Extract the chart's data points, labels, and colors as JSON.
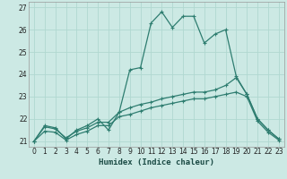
{
  "xlabel": "Humidex (Indice chaleur)",
  "xlim": [
    -0.5,
    23.5
  ],
  "ylim": [
    20.75,
    27.25
  ],
  "xticks": [
    0,
    1,
    2,
    3,
    4,
    5,
    6,
    7,
    8,
    9,
    10,
    11,
    12,
    13,
    14,
    15,
    16,
    17,
    18,
    19,
    20,
    21,
    22,
    23
  ],
  "yticks": [
    21,
    22,
    23,
    24,
    25,
    26,
    27
  ],
  "bg_color": "#cce9e4",
  "grid_color": "#b0d8d0",
  "line_color": "#2e7d70",
  "line1_x": [
    0,
    1,
    2,
    3,
    4,
    5,
    6,
    7,
    8,
    9,
    10,
    11,
    12,
    13,
    14,
    15,
    16,
    17,
    18,
    19,
    20,
    21,
    22,
    23
  ],
  "line1_y": [
    21.0,
    21.7,
    21.6,
    21.1,
    21.5,
    21.7,
    22.0,
    21.5,
    22.3,
    24.2,
    24.3,
    26.3,
    26.8,
    26.1,
    26.6,
    26.6,
    25.4,
    25.8,
    26.0,
    23.9,
    23.1,
    22.0,
    21.5,
    21.1
  ],
  "line2_x": [
    0,
    1,
    2,
    3,
    4,
    5,
    6,
    7,
    8,
    9,
    10,
    11,
    12,
    13,
    14,
    15,
    16,
    17,
    18,
    19,
    20,
    21,
    22,
    23
  ],
  "line2_y": [
    21.0,
    21.65,
    21.55,
    21.15,
    21.45,
    21.6,
    21.85,
    21.85,
    22.3,
    22.5,
    22.65,
    22.75,
    22.9,
    23.0,
    23.1,
    23.2,
    23.2,
    23.3,
    23.5,
    23.85,
    23.1,
    22.0,
    21.5,
    21.1
  ],
  "line3_x": [
    0,
    1,
    2,
    3,
    4,
    5,
    6,
    7,
    8,
    9,
    10,
    11,
    12,
    13,
    14,
    15,
    16,
    17,
    18,
    19,
    20,
    21,
    22,
    23
  ],
  "line3_y": [
    21.0,
    21.45,
    21.4,
    21.05,
    21.3,
    21.45,
    21.7,
    21.7,
    22.1,
    22.2,
    22.35,
    22.5,
    22.6,
    22.7,
    22.8,
    22.9,
    22.9,
    23.0,
    23.1,
    23.2,
    23.0,
    21.9,
    21.4,
    21.05
  ]
}
